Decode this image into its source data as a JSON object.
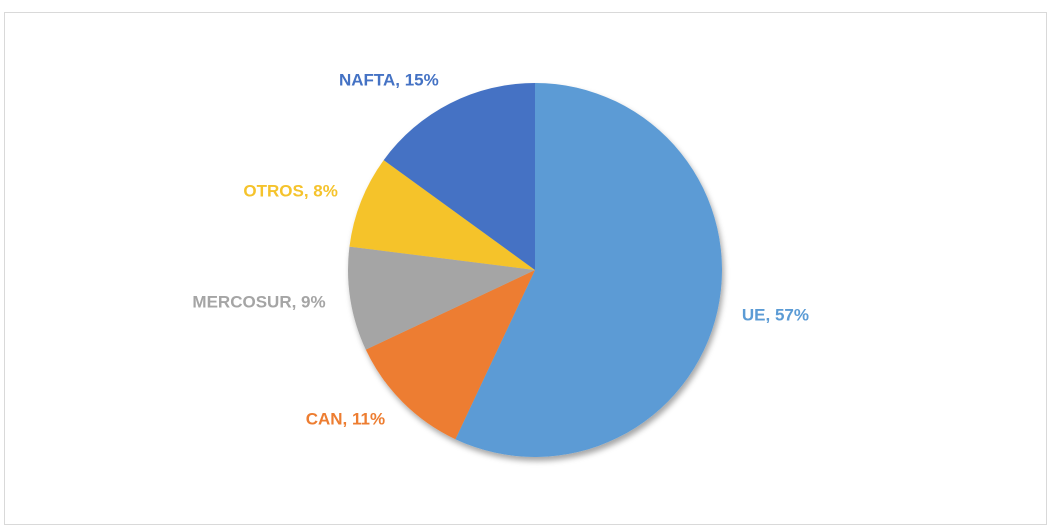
{
  "chart_data": {
    "type": "pie",
    "values": [
      57,
      11,
      9,
      8,
      15
    ],
    "value_labels": [
      "UE, 57%",
      "CAN, 11%",
      "MERCOSUR, 9%",
      "OTROS, 8%",
      "NAFTA, 15%"
    ],
    "colors": [
      "#5b9bd5",
      "#ed7d31",
      "#a5a5a5",
      "#f5c32c",
      "#4472c4"
    ]
  }
}
